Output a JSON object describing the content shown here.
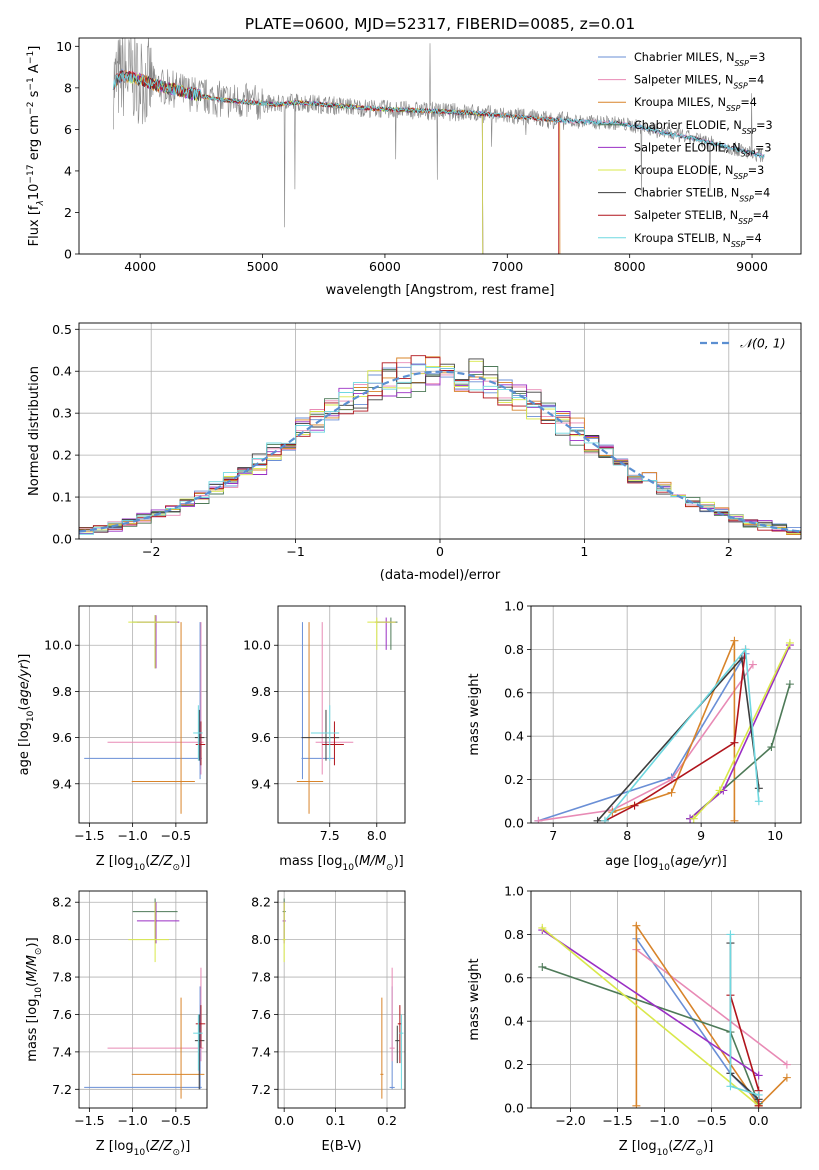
{
  "figure_title": "PLATE=0600, MJD=52317, FIBERID=0085, z=0.01",
  "colors": {
    "chabrier_miles": "#6a8fd6",
    "salpeter_miles": "#e88ab5",
    "kroupa_miles": "#d8842a",
    "chabrier_elodie": "#4e7a58",
    "salpeter_elodie": "#9a2fc4",
    "kroupa_elodie": "#d9e84a",
    "chabrier_stelib": "#3d3d3d",
    "salpeter_stelib": "#b0141c",
    "kroupa_stelib": "#6fd8e0",
    "data": "#888888",
    "normal": "#5b8fd1"
  },
  "chart_data": [
    {
      "id": "spectrum",
      "type": "line",
      "title": "PLATE=0600, MJD=52317, FIBERID=0085, z=0.01",
      "xlabel": "wavelength [Angstrom, rest frame]",
      "ylabel_main": "Flux [f",
      "ylabel_sub1": "λ",
      "ylabel_mid": "10",
      "ylabel_sup1": "−17",
      "ylabel_tail": " erg cm",
      "ylabel_sup2": "−2",
      "ylabel_s": " s",
      "ylabel_sup3": "−1",
      "ylabel_A": " A",
      "ylabel_sup4": "−1",
      "ylabel_end": "]",
      "xlim": [
        3500,
        9400
      ],
      "ylim": [
        0,
        10.4
      ],
      "xticks": [
        4000,
        5000,
        6000,
        7000,
        8000,
        9000
      ],
      "yticks": [
        0,
        2,
        4,
        6,
        8,
        10
      ],
      "continuum": {
        "x": [
          3780,
          3850,
          3950,
          4050,
          4150,
          4300,
          4500,
          4700,
          4900,
          5100,
          5300,
          5500,
          5700,
          5900,
          6100,
          6300,
          6500,
          6700,
          6900,
          7100,
          7300,
          7500,
          7700,
          7900,
          8100,
          8300,
          8500,
          8700,
          8900,
          9100
        ],
        "y": [
          8.2,
          8.6,
          8.5,
          8.3,
          8.1,
          7.9,
          7.6,
          7.4,
          7.3,
          7.2,
          7.3,
          7.2,
          7.1,
          7.0,
          6.95,
          6.9,
          6.85,
          6.8,
          6.7,
          6.6,
          6.5,
          6.4,
          6.35,
          6.3,
          6.1,
          5.8,
          5.6,
          5.3,
          5.0,
          4.7
        ]
      },
      "legend": [
        {
          "pre": "Chabrier MILES, N",
          "sub": "SSP",
          "post": "=3",
          "color_key": "chabrier_miles"
        },
        {
          "pre": "Salpeter MILES, N",
          "sub": "SSP",
          "post": "=4",
          "color_key": "salpeter_miles"
        },
        {
          "pre": "Kroupa MILES, N",
          "sub": "SSP",
          "post": "=4",
          "color_key": "kroupa_miles"
        },
        {
          "pre": "Chabrier ELODIE, N",
          "sub": "SSP",
          "post": "=3",
          "color_key": "chabrier_elodie"
        },
        {
          "pre": "Salpeter ELODIE, N",
          "sub": "SSP",
          "post": "=3",
          "color_key": "salpeter_elodie"
        },
        {
          "pre": "Kroupa ELODIE, N",
          "sub": "SSP",
          "post": "=3",
          "color_key": "kroupa_elodie"
        },
        {
          "pre": "Chabrier STELIB, N",
          "sub": "SSP",
          "post": "=4",
          "color_key": "chabrier_stelib"
        },
        {
          "pre": "Salpeter STELIB, N",
          "sub": "SSP",
          "post": "=4",
          "color_key": "salpeter_stelib"
        },
        {
          "pre": "Kroupa STELIB, N",
          "sub": "SSP",
          "post": "=4",
          "color_key": "kroupa_stelib"
        }
      ]
    },
    {
      "id": "residuals",
      "type": "line",
      "xlabel": "(data-model)/error",
      "ylabel": "Normed distribution",
      "xlim": [
        -2.5,
        2.5
      ],
      "ylim": [
        0,
        0.515
      ],
      "xticks": [
        -2,
        -1,
        0,
        1,
        2
      ],
      "yticks": [
        0.0,
        0.1,
        0.2,
        0.3,
        0.4,
        0.5
      ],
      "grid": true,
      "legend_label": "𝒩(0, 1)",
      "legend_position": "top-right"
    },
    {
      "id": "age_vs_Z",
      "type": "scatter",
      "xlabel_pre": "Z [log",
      "xlabel_sub": "10",
      "xlabel_post": "(Z/Z",
      "xlabel_sub2": "⊙",
      "xlabel_end": ")]",
      "ylabel_pre": "age  [log",
      "ylabel_sub": "10",
      "ylabel_post": "(age/yr)]",
      "xlim": [
        -1.62,
        -0.14
      ],
      "ylim": [
        9.23,
        10.17
      ],
      "xticks": [
        -1.5,
        -1.0,
        -0.5
      ],
      "yticks": [
        9.4,
        9.6,
        9.8,
        10.0
      ],
      "grid": true,
      "points": [
        {
          "k": "chabrier_miles",
          "x": -0.22,
          "y": 9.51,
          "xe": [
            -1.56,
            -0.2
          ],
          "ye": [
            9.42,
            10.1
          ]
        },
        {
          "k": "salpeter_miles",
          "x": -0.21,
          "y": 9.58,
          "xe": [
            -1.29,
            -0.18
          ],
          "ye": [
            9.44,
            10.1
          ]
        },
        {
          "k": "kroupa_miles",
          "x": -0.44,
          "y": 9.41,
          "xe": [
            -1.01,
            -0.28
          ],
          "ye": [
            9.27,
            10.1
          ]
        },
        {
          "k": "chabrier_elodie",
          "x": -0.74,
          "y": 10.1,
          "xe": [
            -1.0,
            -0.48
          ],
          "ye": [
            9.9,
            10.13
          ]
        },
        {
          "k": "salpeter_elodie",
          "x": -0.73,
          "y": 10.1,
          "xe": [
            -0.95,
            -0.46
          ],
          "ye": [
            9.9,
            10.13
          ]
        },
        {
          "k": "kroupa_elodie",
          "x": -0.74,
          "y": 10.1,
          "xe": [
            -1.05,
            -0.48
          ],
          "ye": [
            9.9,
            10.13
          ]
        },
        {
          "k": "chabrier_stelib",
          "x": -0.23,
          "y": 9.6,
          "xe": [
            -0.28,
            -0.17
          ],
          "ye": [
            9.5,
            9.72
          ]
        },
        {
          "k": "salpeter_stelib",
          "x": -0.21,
          "y": 9.57,
          "xe": [
            -0.27,
            -0.16
          ],
          "ye": [
            9.48,
            9.67
          ]
        },
        {
          "k": "kroupa_stelib",
          "x": -0.24,
          "y": 9.62,
          "xe": [
            -0.3,
            -0.19
          ],
          "ye": [
            9.5,
            9.74
          ]
        }
      ]
    },
    {
      "id": "age_vs_mass",
      "type": "scatter",
      "xlabel_pre": "mass [log",
      "xlabel_sub": "10",
      "xlabel_post": "(M/M",
      "xlabel_sub2": "⊙",
      "xlabel_end": ")]",
      "xlim": [
        6.95,
        8.3
      ],
      "ylim": [
        9.23,
        10.17
      ],
      "xticks": [
        7.5,
        8.0
      ],
      "yticks": [
        9.4,
        9.6,
        9.8,
        10.0
      ],
      "grid": true,
      "points": [
        {
          "k": "chabrier_miles",
          "x": 7.21,
          "y": 9.51,
          "xe": [
            7.2,
            7.55
          ],
          "ye": [
            9.42,
            10.1
          ]
        },
        {
          "k": "salpeter_miles",
          "x": 7.42,
          "y": 9.58,
          "xe": [
            7.35,
            7.75
          ],
          "ye": [
            9.44,
            10.1
          ]
        },
        {
          "k": "kroupa_miles",
          "x": 7.28,
          "y": 9.41,
          "xe": [
            7.15,
            7.43
          ],
          "ye": [
            9.27,
            10.1
          ]
        },
        {
          "k": "chabrier_elodie",
          "x": 8.15,
          "y": 10.1,
          "xe": [
            8.0,
            8.22
          ],
          "ye": [
            9.98,
            10.12
          ]
        },
        {
          "k": "salpeter_elodie",
          "x": 8.1,
          "y": 10.1,
          "xe": [
            7.98,
            8.2
          ],
          "ye": [
            9.98,
            10.12
          ]
        },
        {
          "k": "kroupa_elodie",
          "x": 8.0,
          "y": 10.1,
          "xe": [
            7.9,
            8.2
          ],
          "ye": [
            9.98,
            10.12
          ]
        },
        {
          "k": "chabrier_stelib",
          "x": 7.46,
          "y": 9.6,
          "xe": [
            7.2,
            7.6
          ],
          "ye": [
            9.5,
            9.72
          ]
        },
        {
          "k": "salpeter_stelib",
          "x": 7.55,
          "y": 9.57,
          "xe": [
            7.42,
            7.65
          ],
          "ye": [
            9.48,
            9.67
          ]
        },
        {
          "k": "kroupa_stelib",
          "x": 7.5,
          "y": 9.62,
          "xe": [
            7.3,
            7.6
          ],
          "ye": [
            9.5,
            9.74
          ]
        }
      ]
    },
    {
      "id": "weight_vs_age",
      "type": "line",
      "xlabel_pre": "age  [log",
      "xlabel_sub": "10",
      "xlabel_post": "(age/yr)]",
      "ylabel": "mass weight",
      "xlim": [
        6.7,
        10.35
      ],
      "ylim": [
        0,
        1.0
      ],
      "xticks": [
        7,
        8,
        9,
        10
      ],
      "yticks": [
        0.0,
        0.2,
        0.4,
        0.6,
        0.8,
        1.0
      ],
      "grid": true,
      "series": [
        {
          "k": "chabrier_miles",
          "x": [
            6.8,
            8.6,
            9.6
          ],
          "y": [
            0.01,
            0.21,
            0.78
          ]
        },
        {
          "k": "salpeter_miles",
          "x": [
            6.8,
            7.8,
            8.6,
            9.7
          ],
          "y": [
            0.01,
            0.06,
            0.2,
            0.73
          ]
        },
        {
          "k": "kroupa_miles",
          "x": [
            7.8,
            8.6,
            9.45,
            9.45
          ],
          "y": [
            0.05,
            0.14,
            0.84,
            0.01
          ]
        },
        {
          "k": "chabrier_elodie",
          "x": [
            8.85,
            9.95,
            10.2
          ],
          "y": [
            0.02,
            0.35,
            0.64
          ]
        },
        {
          "k": "salpeter_elodie",
          "x": [
            8.85,
            9.3,
            10.2
          ],
          "y": [
            0.02,
            0.15,
            0.82
          ]
        },
        {
          "k": "kroupa_elodie",
          "x": [
            8.9,
            9.25,
            10.2
          ],
          "y": [
            0.02,
            0.15,
            0.83
          ]
        },
        {
          "k": "chabrier_stelib",
          "x": [
            7.6,
            9.55,
            9.78
          ],
          "y": [
            0.01,
            0.76,
            0.16
          ]
        },
        {
          "k": "salpeter_stelib",
          "x": [
            7.7,
            8.1,
            9.45,
            9.6
          ],
          "y": [
            0.01,
            0.08,
            0.37,
            0.8
          ]
        },
        {
          "k": "kroupa_stelib",
          "x": [
            7.7,
            9.6,
            9.78
          ],
          "y": [
            0.01,
            0.8,
            0.1
          ]
        }
      ]
    },
    {
      "id": "mass_vs_Z",
      "type": "scatter",
      "xlabel_pre": "Z [log",
      "xlabel_sub": "10",
      "xlabel_post": "(Z/Z",
      "xlabel_sub2": "⊙",
      "xlabel_end": ")]",
      "ylabel_pre": "mass [log",
      "ylabel_sub": "10",
      "ylabel_post": "(M/M",
      "ylabel_sub2": "⊙",
      "ylabel_end": ")]",
      "xlim": [
        -1.62,
        -0.14
      ],
      "ylim": [
        7.1,
        8.26
      ],
      "xticks": [
        -1.5,
        -1.0,
        -0.5
      ],
      "yticks": [
        7.2,
        7.4,
        7.6,
        7.8,
        8.0,
        8.2
      ],
      "grid": true,
      "points": [
        {
          "k": "chabrier_miles",
          "x": -0.22,
          "y": 7.21,
          "xe": [
            -1.56,
            -0.2
          ],
          "ye": [
            7.2,
            7.75
          ]
        },
        {
          "k": "salpeter_miles",
          "x": -0.21,
          "y": 7.42,
          "xe": [
            -1.29,
            -0.18
          ],
          "ye": [
            7.35,
            7.85
          ]
        },
        {
          "k": "kroupa_miles",
          "x": -0.44,
          "y": 7.28,
          "xe": [
            -1.01,
            -0.17
          ],
          "ye": [
            7.15,
            7.69
          ]
        },
        {
          "k": "chabrier_elodie",
          "x": -0.74,
          "y": 8.15,
          "xe": [
            -1.0,
            -0.48
          ],
          "ye": [
            8.0,
            8.22
          ]
        },
        {
          "k": "salpeter_elodie",
          "x": -0.73,
          "y": 8.1,
          "xe": [
            -0.95,
            -0.46
          ],
          "ye": [
            7.98,
            8.2
          ]
        },
        {
          "k": "kroupa_elodie",
          "x": -0.74,
          "y": 8.0,
          "xe": [
            -1.05,
            -0.58
          ],
          "ye": [
            7.88,
            8.2
          ]
        },
        {
          "k": "chabrier_stelib",
          "x": -0.23,
          "y": 7.46,
          "xe": [
            -0.28,
            -0.17
          ],
          "ye": [
            7.2,
            7.6
          ]
        },
        {
          "k": "salpeter_stelib",
          "x": -0.21,
          "y": 7.55,
          "xe": [
            -0.27,
            -0.16
          ],
          "ye": [
            7.42,
            7.65
          ]
        },
        {
          "k": "kroupa_stelib",
          "x": -0.24,
          "y": 7.5,
          "xe": [
            -0.3,
            -0.19
          ],
          "ye": [
            7.3,
            7.6
          ]
        }
      ]
    },
    {
      "id": "mass_vs_ebv",
      "type": "scatter",
      "xlabel": "E(B-V)",
      "xlim": [
        -0.012,
        0.235
      ],
      "ylim": [
        7.1,
        8.26
      ],
      "xticks": [
        0.0,
        0.1,
        0.2
      ],
      "yticks": [
        7.2,
        7.4,
        7.6,
        7.8,
        8.0,
        8.2
      ],
      "grid": true,
      "points": [
        {
          "k": "chabrier_miles",
          "x": 0.21,
          "y": 7.21,
          "xe": [
            0.205,
            0.215
          ],
          "ye": [
            7.2,
            7.75
          ]
        },
        {
          "k": "salpeter_miles",
          "x": 0.21,
          "y": 7.42,
          "xe": [
            0.205,
            0.215
          ],
          "ye": [
            7.35,
            7.85
          ]
        },
        {
          "k": "kroupa_miles",
          "x": 0.19,
          "y": 7.28,
          "xe": [
            0.187,
            0.193
          ],
          "ye": [
            7.15,
            7.69
          ]
        },
        {
          "k": "chabrier_elodie",
          "x": 0.0,
          "y": 8.15,
          "xe": [
            -0.003,
            0.003
          ],
          "ye": [
            8.0,
            8.22
          ]
        },
        {
          "k": "salpeter_elodie",
          "x": 0.0,
          "y": 8.1,
          "xe": [
            -0.003,
            0.003
          ],
          "ye": [
            7.98,
            8.2
          ]
        },
        {
          "k": "kroupa_elodie",
          "x": 0.0,
          "y": 8.0,
          "xe": [
            -0.003,
            0.003
          ],
          "ye": [
            7.88,
            8.2
          ]
        },
        {
          "k": "chabrier_stelib",
          "x": 0.22,
          "y": 7.46,
          "xe": [
            0.216,
            0.224
          ],
          "ye": [
            7.34,
            7.54
          ]
        },
        {
          "k": "salpeter_stelib",
          "x": 0.225,
          "y": 7.55,
          "xe": [
            0.221,
            0.229
          ],
          "ye": [
            7.34,
            7.65
          ]
        },
        {
          "k": "kroupa_stelib",
          "x": 0.228,
          "y": 7.5,
          "xe": [
            0.224,
            0.232
          ],
          "ye": [
            7.2,
            7.6
          ]
        }
      ]
    },
    {
      "id": "weight_vs_Z",
      "type": "line",
      "xlabel_pre": "Z [log",
      "xlabel_sub": "10",
      "xlabel_post": "(Z/Z",
      "xlabel_sub2": "⊙",
      "xlabel_end": ")]",
      "ylabel": "mass weight",
      "xlim": [
        -2.42,
        0.45
      ],
      "ylim": [
        0,
        1.0
      ],
      "xticks": [
        -2.0,
        -1.5,
        -1.0,
        -0.5,
        0.0
      ],
      "yticks": [
        0.0,
        0.2,
        0.4,
        0.6,
        0.8,
        1.0
      ],
      "grid": true,
      "series": [
        {
          "k": "chabrier_miles",
          "x": [
            -1.3,
            -0.3,
            0.0
          ],
          "y": [
            0.78,
            0.16,
            0.03
          ]
        },
        {
          "k": "salpeter_miles",
          "x": [
            -1.3,
            0.3
          ],
          "y": [
            0.73,
            0.2
          ]
        },
        {
          "k": "kroupa_miles",
          "x": [
            -1.3,
            -1.3,
            0.0,
            0.3
          ],
          "y": [
            0.01,
            0.84,
            0.01,
            0.14
          ]
        },
        {
          "k": "chabrier_elodie",
          "x": [
            -2.3,
            -0.3,
            0.0
          ],
          "y": [
            0.65,
            0.35,
            0.02
          ]
        },
        {
          "k": "salpeter_elodie",
          "x": [
            -2.3,
            0.0
          ],
          "y": [
            0.82,
            0.15
          ]
        },
        {
          "k": "kroupa_elodie",
          "x": [
            -2.3,
            0.0
          ],
          "y": [
            0.83,
            0.01
          ]
        },
        {
          "k": "chabrier_stelib",
          "x": [
            -0.3,
            -0.3,
            0.0
          ],
          "y": [
            0.76,
            0.16,
            0.04
          ]
        },
        {
          "k": "salpeter_stelib",
          "x": [
            -0.3,
            0.0,
            0.0
          ],
          "y": [
            0.52,
            0.08,
            0.01
          ]
        },
        {
          "k": "kroupa_stelib",
          "x": [
            -0.3,
            -0.3,
            0.0
          ],
          "y": [
            0.8,
            0.1,
            0.06
          ]
        }
      ]
    }
  ]
}
